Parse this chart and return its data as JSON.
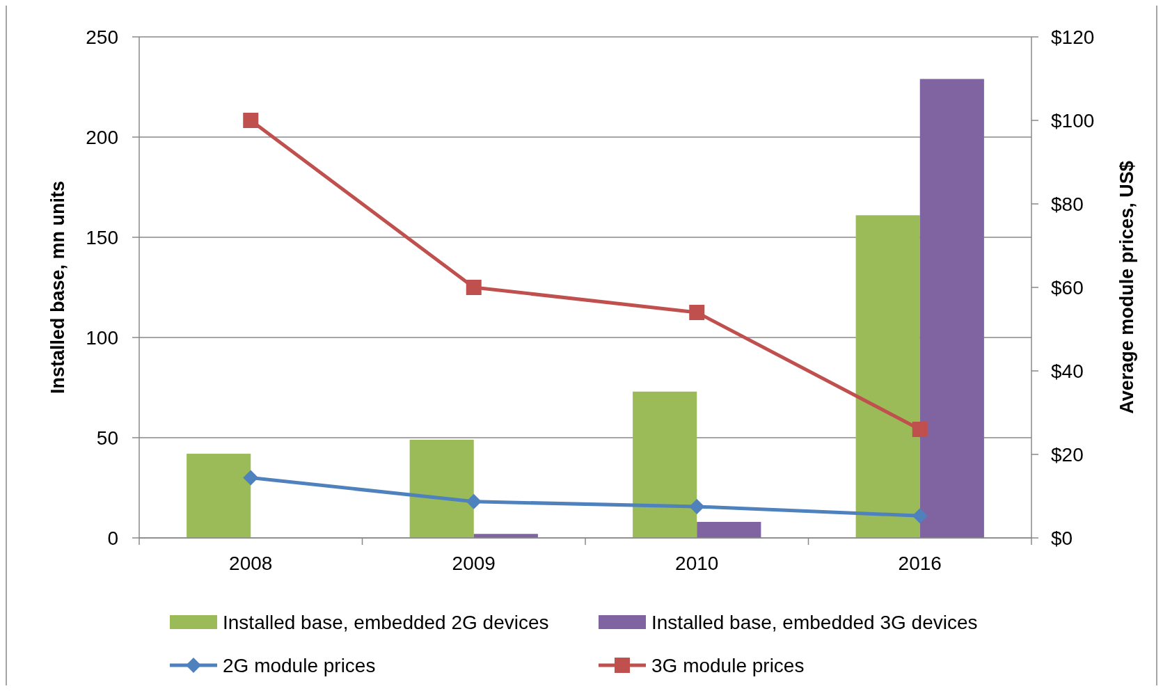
{
  "chart_data": {
    "type": "bar",
    "categories": [
      "2008",
      "2009",
      "2010",
      "2016"
    ],
    "ylabel": "Installed base, mn units",
    "y2label": "Average module prices, US$",
    "ylim": [
      0,
      250
    ],
    "yticks": [
      0,
      50,
      100,
      150,
      200,
      250
    ],
    "y2lim": [
      0,
      120
    ],
    "y2ticks": [
      {
        "value": 0,
        "label": "$0"
      },
      {
        "value": 20,
        "label": "$20"
      },
      {
        "value": 40,
        "label": "$40"
      },
      {
        "value": 60,
        "label": "$60"
      },
      {
        "value": 80,
        "label": "$80"
      },
      {
        "value": 100,
        "label": "$100"
      },
      {
        "value": 120,
        "label": "$120"
      }
    ],
    "grid": "y",
    "legend": "bottom",
    "series": [
      {
        "name": "Installed base, embedded 2G devices",
        "color": "#9bbb59",
        "values": [
          42,
          49,
          73,
          161
        ]
      },
      {
        "name": "Installed base, embedded 3G devices",
        "color": "#8064a2",
        "values": [
          null,
          2,
          8,
          229
        ]
      },
      {
        "name": "2G module prices",
        "type": "line",
        "axis": "y2",
        "marker": "diamond",
        "color": "#4f81bd",
        "values": [
          14.4,
          8.7,
          7.5,
          5.3
        ]
      },
      {
        "name": "3G module prices",
        "type": "line",
        "axis": "y2",
        "marker": "square",
        "color": "#c0504d",
        "values": [
          100,
          60,
          54,
          26
        ]
      }
    ]
  }
}
